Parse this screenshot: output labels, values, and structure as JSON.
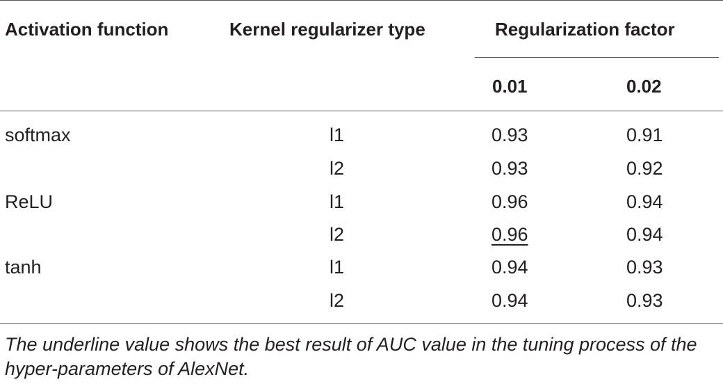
{
  "table": {
    "headers": {
      "activation": "Activation function",
      "kernel": "Kernel regularizer type",
      "factor": "Regularization factor",
      "factor_01": "0.01",
      "factor_02": "0.02"
    },
    "rows": [
      {
        "activation": "softmax",
        "kernel": "l1",
        "v001": "0.93",
        "v002": "0.91"
      },
      {
        "activation": "",
        "kernel": "l2",
        "v001": "0.93",
        "v002": "0.92"
      },
      {
        "activation": "ReLU",
        "kernel": "l1",
        "v001": "0.96",
        "v002": "0.94"
      },
      {
        "activation": "",
        "kernel": "l2",
        "v001": "0.96",
        "v002": "0.94",
        "underlined": "0.01"
      },
      {
        "activation": "tanh",
        "kernel": "l1",
        "v001": "0.94",
        "v002": "0.93"
      },
      {
        "activation": "",
        "kernel": "l2",
        "v001": "0.94",
        "v002": "0.93"
      }
    ]
  },
  "caption": "The underline value shows the best result of AUC value in the tuning process of the hyper-parameters of AlexNet."
}
